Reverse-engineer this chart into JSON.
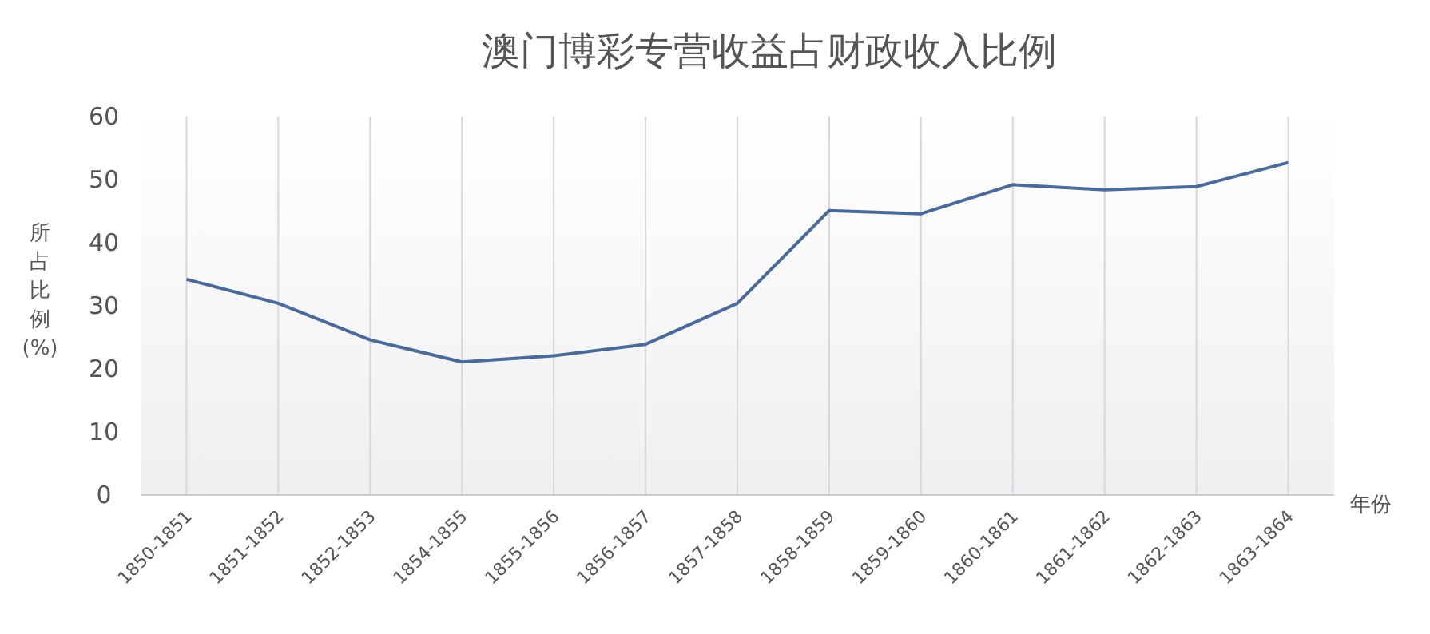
{
  "chart_data": {
    "type": "line",
    "title": "澳门博彩专营收益占财政收入比例",
    "xlabel": "年份",
    "ylabel": "所占比例(%)",
    "categories": [
      "1850-1851",
      "1851-1852",
      "1852-1853",
      "1854-1855",
      "1855-1856",
      "1856-1857",
      "1857-1858",
      "1858-1859",
      "1859-1860",
      "1860-1861",
      "1861-1862",
      "1862-1863",
      "1863-1864"
    ],
    "series": [
      {
        "color": "#4a6a99",
        "values": [
          34.2,
          30.4,
          24.6,
          21.1,
          22.1,
          23.9,
          30.4,
          45.1,
          44.6,
          49.2,
          48.4,
          48.9,
          52.7
        ]
      }
    ],
    "ylim": [
      0,
      60
    ],
    "yticks": [
      0,
      10,
      20,
      30,
      40,
      50,
      60
    ],
    "grid": "x",
    "marker": "none",
    "line_style": "solid"
  }
}
